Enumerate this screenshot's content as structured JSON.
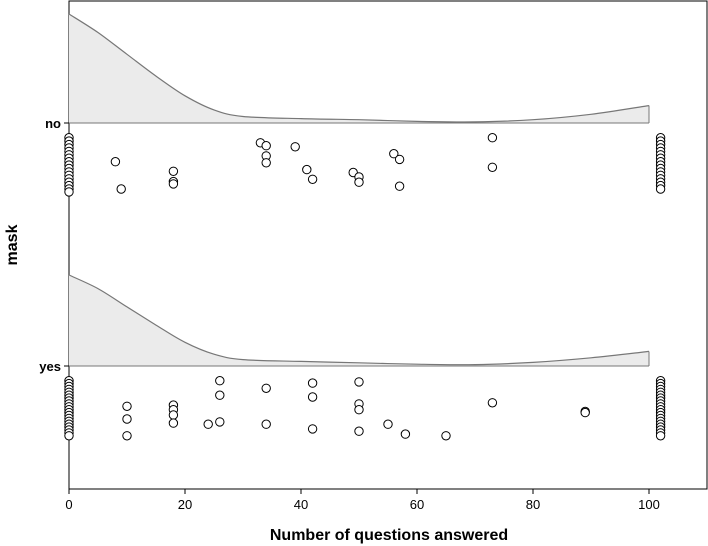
{
  "chart_data": {
    "type": "scatter",
    "title": "",
    "xlabel": "Number of questions answered",
    "ylabel": "mask",
    "xlim": [
      0,
      110
    ],
    "x_ticks": [
      0,
      20,
      40,
      60,
      80,
      100
    ],
    "categories": [
      "no",
      "yes"
    ],
    "grid": false,
    "legend": "none",
    "density_fill": "#ebebeb",
    "density_stroke": "#777777",
    "marker_fill": "#ffffff",
    "marker_stroke": "#000000",
    "groups": [
      {
        "category": "no",
        "density_curve": [
          [
            0,
            1.0
          ],
          [
            5,
            0.83
          ],
          [
            10,
            0.63
          ],
          [
            15,
            0.43
          ],
          [
            20,
            0.25
          ],
          [
            25,
            0.12
          ],
          [
            30,
            0.06
          ],
          [
            40,
            0.04
          ],
          [
            50,
            0.03
          ],
          [
            60,
            0.015
          ],
          [
            70,
            0.01
          ],
          [
            80,
            0.03
          ],
          [
            90,
            0.08
          ],
          [
            100,
            0.16
          ]
        ],
        "points": [
          {
            "x": 0,
            "jitter": 0.97
          },
          {
            "x": 0,
            "jitter": 0.91
          },
          {
            "x": 0,
            "jitter": 0.85
          },
          {
            "x": 0,
            "jitter": 0.79
          },
          {
            "x": 0,
            "jitter": 0.73
          },
          {
            "x": 0,
            "jitter": 0.67
          },
          {
            "x": 0,
            "jitter": 0.61
          },
          {
            "x": 0,
            "jitter": 0.55
          },
          {
            "x": 0,
            "jitter": 0.49
          },
          {
            "x": 0,
            "jitter": 0.43
          },
          {
            "x": 0,
            "jitter": 0.37
          },
          {
            "x": 0,
            "jitter": 0.31
          },
          {
            "x": 0,
            "jitter": 0.25
          },
          {
            "x": 0,
            "jitter": 0.19
          },
          {
            "x": 0,
            "jitter": 0.13
          },
          {
            "x": 0,
            "jitter": 0.07
          },
          {
            "x": 0,
            "jitter": 0.02
          },
          {
            "x": 8,
            "jitter": 0.55
          },
          {
            "x": 9,
            "jitter": 0.07
          },
          {
            "x": 18,
            "jitter": 0.38
          },
          {
            "x": 18,
            "jitter": 0.2
          },
          {
            "x": 18,
            "jitter": 0.16
          },
          {
            "x": 33,
            "jitter": 0.88
          },
          {
            "x": 34,
            "jitter": 0.83
          },
          {
            "x": 34,
            "jitter": 0.65
          },
          {
            "x": 34,
            "jitter": 0.53
          },
          {
            "x": 39,
            "jitter": 0.81
          },
          {
            "x": 41,
            "jitter": 0.41
          },
          {
            "x": 42,
            "jitter": 0.24
          },
          {
            "x": 49,
            "jitter": 0.36
          },
          {
            "x": 50,
            "jitter": 0.28
          },
          {
            "x": 50,
            "jitter": 0.19
          },
          {
            "x": 56,
            "jitter": 0.69
          },
          {
            "x": 57,
            "jitter": 0.59
          },
          {
            "x": 57,
            "jitter": 0.12
          },
          {
            "x": 73,
            "jitter": 0.97
          },
          {
            "x": 73,
            "jitter": 0.45
          },
          {
            "x": 102,
            "jitter": 0.97
          },
          {
            "x": 102,
            "jitter": 0.91
          },
          {
            "x": 102,
            "jitter": 0.85
          },
          {
            "x": 102,
            "jitter": 0.79
          },
          {
            "x": 102,
            "jitter": 0.73
          },
          {
            "x": 102,
            "jitter": 0.67
          },
          {
            "x": 102,
            "jitter": 0.61
          },
          {
            "x": 102,
            "jitter": 0.55
          },
          {
            "x": 102,
            "jitter": 0.49
          },
          {
            "x": 102,
            "jitter": 0.43
          },
          {
            "x": 102,
            "jitter": 0.37
          },
          {
            "x": 102,
            "jitter": 0.31
          },
          {
            "x": 102,
            "jitter": 0.25
          },
          {
            "x": 102,
            "jitter": 0.19
          },
          {
            "x": 102,
            "jitter": 0.13
          },
          {
            "x": 102,
            "jitter": 0.07
          }
        ]
      },
      {
        "category": "yes",
        "density_curve": [
          [
            0,
            1.0
          ],
          [
            5,
            0.85
          ],
          [
            10,
            0.65
          ],
          [
            15,
            0.45
          ],
          [
            20,
            0.26
          ],
          [
            25,
            0.13
          ],
          [
            30,
            0.07
          ],
          [
            40,
            0.05
          ],
          [
            50,
            0.035
          ],
          [
            60,
            0.02
          ],
          [
            70,
            0.015
          ],
          [
            80,
            0.04
          ],
          [
            90,
            0.09
          ],
          [
            100,
            0.16
          ]
        ],
        "points": [
          {
            "x": 0,
            "jitter": 0.97
          },
          {
            "x": 0,
            "jitter": 0.92
          },
          {
            "x": 0,
            "jitter": 0.87
          },
          {
            "x": 0,
            "jitter": 0.82
          },
          {
            "x": 0,
            "jitter": 0.77
          },
          {
            "x": 0,
            "jitter": 0.72
          },
          {
            "x": 0,
            "jitter": 0.67
          },
          {
            "x": 0,
            "jitter": 0.62
          },
          {
            "x": 0,
            "jitter": 0.57
          },
          {
            "x": 0,
            "jitter": 0.52
          },
          {
            "x": 0,
            "jitter": 0.47
          },
          {
            "x": 0,
            "jitter": 0.42
          },
          {
            "x": 0,
            "jitter": 0.37
          },
          {
            "x": 0,
            "jitter": 0.32
          },
          {
            "x": 0,
            "jitter": 0.27
          },
          {
            "x": 0,
            "jitter": 0.22
          },
          {
            "x": 0,
            "jitter": 0.17
          },
          {
            "x": 0,
            "jitter": 0.12
          },
          {
            "x": 0,
            "jitter": 0.07
          },
          {
            "x": 0,
            "jitter": 0.02
          },
          {
            "x": 10,
            "jitter": 0.53
          },
          {
            "x": 10,
            "jitter": 0.31
          },
          {
            "x": 10,
            "jitter": 0.02
          },
          {
            "x": 18,
            "jitter": 0.55
          },
          {
            "x": 18,
            "jitter": 0.47
          },
          {
            "x": 18,
            "jitter": 0.38
          },
          {
            "x": 18,
            "jitter": 0.24
          },
          {
            "x": 24,
            "jitter": 0.22
          },
          {
            "x": 26,
            "jitter": 0.97
          },
          {
            "x": 26,
            "jitter": 0.72
          },
          {
            "x": 26,
            "jitter": 0.26
          },
          {
            "x": 34,
            "jitter": 0.84
          },
          {
            "x": 34,
            "jitter": 0.22
          },
          {
            "x": 42,
            "jitter": 0.93
          },
          {
            "x": 42,
            "jitter": 0.69
          },
          {
            "x": 42,
            "jitter": 0.14
          },
          {
            "x": 50,
            "jitter": 0.95
          },
          {
            "x": 50,
            "jitter": 0.57
          },
          {
            "x": 50,
            "jitter": 0.47
          },
          {
            "x": 50,
            "jitter": 0.1
          },
          {
            "x": 55,
            "jitter": 0.22
          },
          {
            "x": 58,
            "jitter": 0.05
          },
          {
            "x": 65,
            "jitter": 0.02
          },
          {
            "x": 73,
            "jitter": 0.59
          },
          {
            "x": 89,
            "jitter": 0.44
          },
          {
            "x": 89,
            "jitter": 0.42
          },
          {
            "x": 102,
            "jitter": 0.97
          },
          {
            "x": 102,
            "jitter": 0.92
          },
          {
            "x": 102,
            "jitter": 0.87
          },
          {
            "x": 102,
            "jitter": 0.82
          },
          {
            "x": 102,
            "jitter": 0.77
          },
          {
            "x": 102,
            "jitter": 0.72
          },
          {
            "x": 102,
            "jitter": 0.67
          },
          {
            "x": 102,
            "jitter": 0.62
          },
          {
            "x": 102,
            "jitter": 0.57
          },
          {
            "x": 102,
            "jitter": 0.52
          },
          {
            "x": 102,
            "jitter": 0.47
          },
          {
            "x": 102,
            "jitter": 0.42
          },
          {
            "x": 102,
            "jitter": 0.37
          },
          {
            "x": 102,
            "jitter": 0.32
          },
          {
            "x": 102,
            "jitter": 0.27
          },
          {
            "x": 102,
            "jitter": 0.22
          },
          {
            "x": 102,
            "jitter": 0.17
          },
          {
            "x": 102,
            "jitter": 0.12
          },
          {
            "x": 102,
            "jitter": 0.07
          },
          {
            "x": 102,
            "jitter": 0.02
          }
        ]
      }
    ]
  }
}
